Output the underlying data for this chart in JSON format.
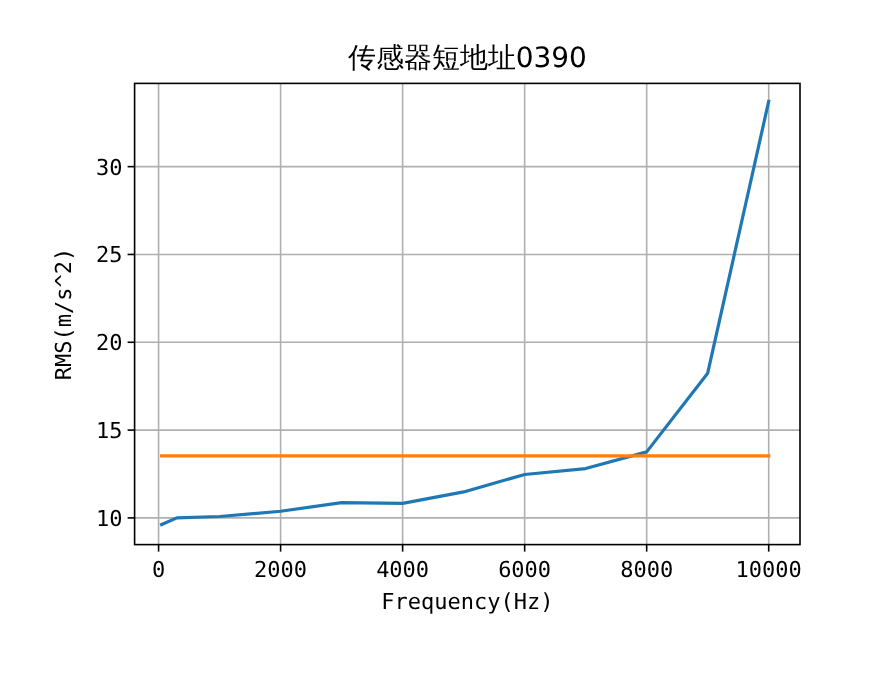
{
  "chart_data": {
    "type": "line",
    "title": "传感器短地址0390",
    "xlabel": "Frequency(Hz)",
    "ylabel": "RMS(m/s^2)",
    "xlim": [
      -393,
      10513
    ],
    "ylim": [
      8.48,
      34.74
    ],
    "xticks": [
      0,
      2000,
      4000,
      6000,
      8000,
      10000
    ],
    "yticks": [
      10,
      15,
      20,
      25,
      30
    ],
    "grid": true,
    "line_style": "solid",
    "series": [
      {
        "color": "#1f77b4",
        "x": [
          50,
          300,
          1000,
          2000,
          3000,
          4000,
          5000,
          6000,
          7000,
          8000,
          9000,
          10000
        ],
        "values": [
          9.62,
          10.0,
          10.08,
          10.38,
          10.87,
          10.83,
          11.48,
          12.47,
          12.81,
          13.76,
          18.24,
          33.72
        ]
      },
      {
        "color": "#ff7f0e",
        "x": [
          50,
          10000
        ],
        "values": [
          13.53,
          13.53
        ]
      }
    ]
  }
}
